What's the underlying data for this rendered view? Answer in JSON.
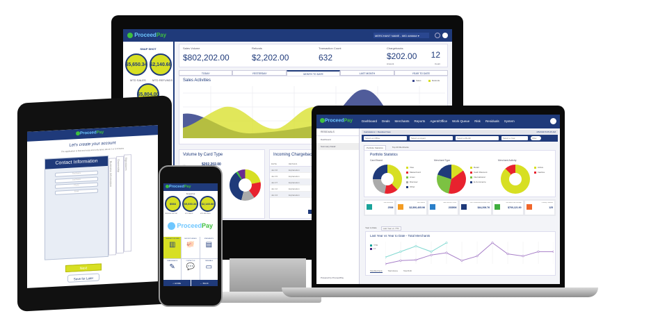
{
  "brand": {
    "name_a": "Proceed",
    "name_b": "Pay"
  },
  "monitor": {
    "header": {
      "merchant": "MERCHANT NAME - MID ######"
    },
    "snapshot": {
      "title": "SNAP SHOT",
      "items": [
        {
          "value": "$5,650.34",
          "label": "MTD SALES"
        },
        {
          "value": "$2,140.68",
          "label": "MTD REFUNDS"
        },
        {
          "value": "$5,804.00",
          "label": ""
        }
      ]
    },
    "stats": [
      {
        "label": "Sales Volume",
        "value": "$802,202.00"
      },
      {
        "label": "Refunds",
        "value": "$2,202.00"
      },
      {
        "label": "Transaction Count",
        "value": "632"
      }
    ],
    "chargebacks": {
      "label": "Chargebacks",
      "amount": "$202.00",
      "amount_label": "Amount",
      "count": "12",
      "count_label": "Count"
    },
    "tabs": [
      "TODAY",
      "YESTERDAY",
      "MONTH TO DATE",
      "LAST MONTH",
      "YEAR TO DATE"
    ],
    "active_tab": 2,
    "sales_activities": {
      "title": "Sales Activities",
      "legend": [
        "Sales",
        "Refunds"
      ],
      "colors": [
        "#3d4a8f",
        "#d7df23"
      ]
    },
    "volume_card": {
      "title": "Volume by Card Type",
      "row_label": "Visa",
      "row_value": "$202,202.00",
      "slices": [
        {
          "color": "#d7df23",
          "pct": 22
        },
        {
          "color": "#e8222e",
          "pct": 18
        },
        {
          "color": "#aaaaaa",
          "pct": 14
        },
        {
          "color": "#1f3a7a",
          "pct": 36
        },
        {
          "color": "#3fbf3f",
          "pct": 2
        },
        {
          "color": "#6a2c91",
          "pct": 8
        }
      ]
    },
    "chargebacks_panel": {
      "title": "Incoming Chargebacks",
      "headers": [
        "DATE",
        "DETAILS"
      ],
      "rows": [
        [
          "Jan 02",
          "Explanation"
        ],
        [
          "Jan 03",
          "Explanation"
        ],
        [
          "Jan 07",
          "Explanation"
        ],
        [
          "Jan 12",
          "Explanation"
        ],
        [
          "Jan 24",
          "Explanation"
        ]
      ],
      "button": "VI"
    }
  },
  "laptop": {
    "nav": [
      "Dashboard",
      "Deals",
      "Merchants",
      "Reports",
      "Agent/Office",
      "Work Queue",
      "Risk",
      "Residuals",
      "System"
    ],
    "sidebar": {
      "title": "RESIDUALS",
      "items": [
        "Dashboard",
        "Summary Detail"
      ],
      "footer": "Powered by ProceedPay"
    },
    "breadcrumb": "Calculations > Residual View",
    "datetime": "4/5/2018 8:05:25 AM",
    "filters": [
      "Select an Office",
      "Select an Agent",
      "Select a Month",
      "Select a Year"
    ],
    "filter_button": "Filter",
    "tabs": [
      "Portfolio Statistics",
      "Top 20 Merchants"
    ],
    "portfolio": {
      "title": "Portfolio Statistics",
      "charts": [
        {
          "title": "Card Brand",
          "legend": [
            "Visa",
            "MasterCard",
            "Amex",
            "Discover",
            "Other"
          ],
          "colors": [
            "#d7df23",
            "#e8222e",
            "#7cc242",
            "#aaaaaa",
            "#1f3a7a"
          ],
          "pct": [
            38,
            15,
            0,
            22,
            25
          ]
        },
        {
          "title": "Merchant Type",
          "legend": [
            "Retail",
            "Cash Discount",
            "International",
            "E-Commerce"
          ],
          "colors": [
            "#d7df23",
            "#e8222e",
            "#7cc242",
            "#1f3a7a"
          ],
          "pct": [
            15,
            38,
            27,
            20
          ]
        },
        {
          "title": "Merchant Activity",
          "legend": [
            "Active",
            "Inactive"
          ],
          "colors": [
            "#d7df23",
            "#e8222e"
          ],
          "pct": [
            88,
            12
          ]
        }
      ]
    },
    "kpis": [
      {
        "label": "Total Merchants",
        "value": "2506",
        "color": "#1aa39a"
      },
      {
        "label": "Total Volume",
        "value": "$2,500,405.96",
        "color": "#f39c23"
      },
      {
        "label": "Total Revenue Tickets",
        "value": "233506",
        "color": "#2a7fc9"
      },
      {
        "label": "Total Commission/Residual Paid",
        "value": "$44,206.76",
        "color": "#1f3a7a"
      },
      {
        "label": "Total Month Net Earnings",
        "value": "$700,121.90",
        "color": "#3fae3f"
      },
      {
        "label": "Ordinary Liabilities",
        "value": "125",
        "color": "#f0662b"
      }
    ],
    "lower_tabs": [
      "Year to Date",
      "Last Year vs YTD"
    ],
    "line_chart": {
      "title": "Last Year vs Year to Date - Total Merchants",
      "legend": [
        "YTD",
        "LY"
      ],
      "colors": [
        "#7fd8d0",
        "#a77fc8"
      ],
      "ytd": [
        30,
        55,
        80,
        55,
        95
      ],
      "ly": [
        0,
        15,
        18,
        40,
        50,
        15,
        35,
        95,
        45,
        35,
        55,
        55
      ],
      "bottom_tabs": [
        "Total Merchants",
        "Total Volume",
        "Total Profit"
      ]
    }
  },
  "tablet": {
    "heading": "Let's create your account",
    "sub": "The application is fast and easy and only takes about 2 or 3 minutes",
    "card_title": "Contact Information",
    "side_tabs": [
      "Business Information",
      "Ownership",
      "Signatures"
    ],
    "fields": [
      "First Name",
      "Last Name",
      "Phone",
      "Email"
    ],
    "next": "Next",
    "save": "Save for Later"
  },
  "phone": {
    "snapshot": "Snapshot",
    "circles": [
      {
        "value": "$583",
        "label": "PENDING DEPOSIT"
      },
      {
        "value": "$5,650.34",
        "label": "MTD SALES"
      },
      {
        "value": "$2,140.68",
        "label": "MTD REFUNDS"
      }
    ],
    "tiles": [
      "TRANSACTION DATA",
      "DEPOSIT DETAILS",
      "STATEMENTS",
      "CHARGEBACKS",
      "CONTACT US",
      "TERMINALS"
    ],
    "bottom": [
      "HOME",
      "BACK"
    ]
  }
}
